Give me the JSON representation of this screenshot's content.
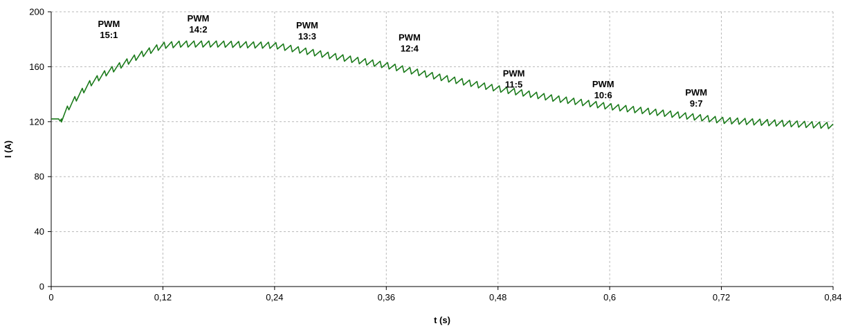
{
  "chart_data": {
    "type": "line",
    "title": "",
    "xlabel": "t (s)",
    "ylabel": "I (A)",
    "xlim": [
      0,
      0.84
    ],
    "ylim": [
      0,
      200
    ],
    "x_ticks": [
      0,
      0.12,
      0.24,
      0.36,
      0.48,
      0.6,
      0.72,
      0.84
    ],
    "x_tick_labels": [
      "0",
      "0,12",
      "0,24",
      "0,36",
      "0,48",
      "0,6",
      "0,72",
      "0,84"
    ],
    "y_ticks": [
      0,
      40,
      80,
      120,
      160,
      200
    ],
    "y_tick_labels": [
      "0",
      "40",
      "80",
      "120",
      "160",
      "200"
    ],
    "grid": true,
    "line_color": "#1a7a1a",
    "series": [
      {
        "ripple_period_s": 0.008,
        "ripple_amplitude_a": 4.5,
        "envelope": {
          "x": [
            0,
            0.008,
            0.0095,
            0.011,
            0.02,
            0.04,
            0.06,
            0.08,
            0.1,
            0.12,
            0.14,
            0.18,
            0.24,
            0.3,
            0.36,
            0.42,
            0.48,
            0.54,
            0.6,
            0.66,
            0.72,
            0.78,
            0.84
          ],
          "y": [
            122,
            122,
            120.5,
            122,
            132,
            147,
            156,
            163,
            170,
            175.5,
            176.5,
            176.5,
            175.5,
            168,
            161,
            152,
            144,
            137,
            131,
            126,
            121,
            119,
            117
          ]
        }
      }
    ],
    "annotations": [
      {
        "lines": [
          "PWM",
          "15:1"
        ],
        "x": 0.062,
        "y": 189
      },
      {
        "lines": [
          "PWM",
          "14:2"
        ],
        "x": 0.158,
        "y": 193
      },
      {
        "lines": [
          "PWM",
          "13:3"
        ],
        "x": 0.275,
        "y": 188
      },
      {
        "lines": [
          "PWM",
          "12:4"
        ],
        "x": 0.385,
        "y": 179
      },
      {
        "lines": [
          "PWM",
          "11:5"
        ],
        "x": 0.497,
        "y": 153
      },
      {
        "lines": [
          "PWM",
          "10:6"
        ],
        "x": 0.593,
        "y": 145
      },
      {
        "lines": [
          "PWM",
          "9:7"
        ],
        "x": 0.693,
        "y": 139
      }
    ]
  }
}
